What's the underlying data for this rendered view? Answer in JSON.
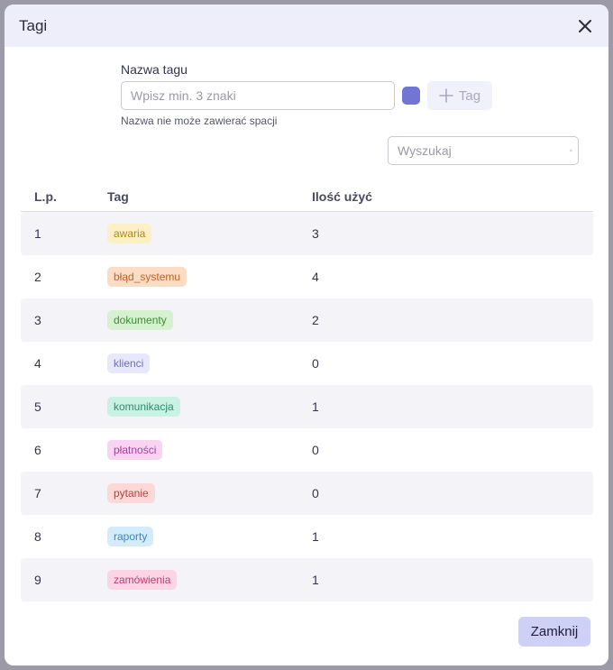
{
  "dialog": {
    "title": "Tagi",
    "close_icon": "close-icon"
  },
  "form": {
    "label": "Nazwa tagu",
    "input_value": "",
    "input_placeholder": "Wpisz min. 3 znaki",
    "color": "#7275d2",
    "add_button_label": "Tag",
    "hint": "Nazwa nie może zawierać spacji"
  },
  "search": {
    "value": "",
    "placeholder": "Wyszukaj"
  },
  "table": {
    "headers": {
      "lp": "L.p.",
      "tag": "Tag",
      "count": "Ilość użyć"
    },
    "rows": [
      {
        "lp": "1",
        "tag": "awaria",
        "count": "3",
        "bg": "#fdf0c4",
        "fg": "#b08a17"
      },
      {
        "lp": "2",
        "tag": "błąd_systemu",
        "count": "4",
        "bg": "#fbdcc5",
        "fg": "#c2622a"
      },
      {
        "lp": "3",
        "tag": "dokumenty",
        "count": "2",
        "bg": "#d5f1cf",
        "fg": "#3f8b3a"
      },
      {
        "lp": "4",
        "tag": "klienci",
        "count": "0",
        "bg": "#e8e8fb",
        "fg": "#6b6fc2"
      },
      {
        "lp": "5",
        "tag": "komunikacja",
        "count": "1",
        "bg": "#c9f2e3",
        "fg": "#2a8b6e"
      },
      {
        "lp": "6",
        "tag": "płatności",
        "count": "0",
        "bg": "#f8d3f2",
        "fg": "#b23aa2"
      },
      {
        "lp": "7",
        "tag": "pytanie",
        "count": "0",
        "bg": "#fcd9d6",
        "fg": "#b8423a"
      },
      {
        "lp": "8",
        "tag": "raporty",
        "count": "1",
        "bg": "#d4ebfb",
        "fg": "#3b86c2"
      },
      {
        "lp": "9",
        "tag": "zamówienia",
        "count": "1",
        "bg": "#fcd5e4",
        "fg": "#c03a74"
      }
    ]
  },
  "footer": {
    "close_button_label": "Zamknij"
  }
}
